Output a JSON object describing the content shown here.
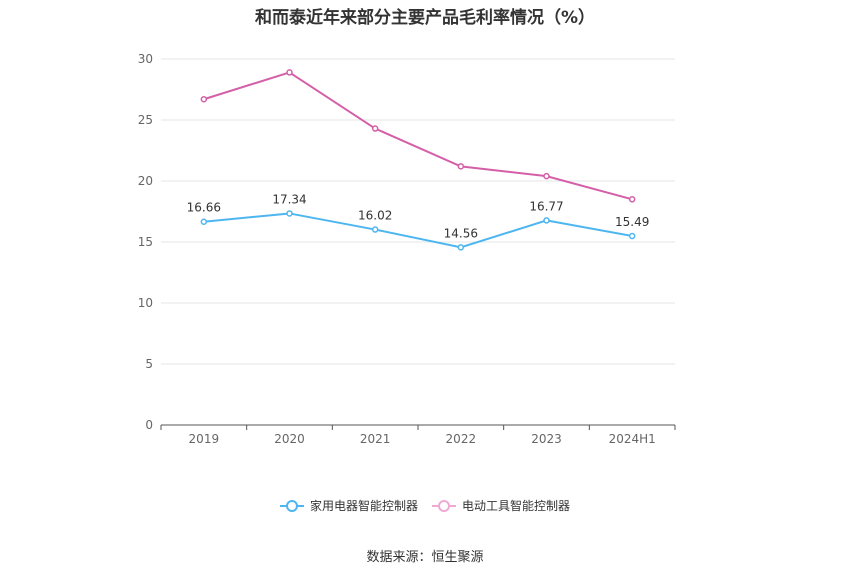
{
  "chart_data": {
    "type": "line",
    "title": "和而泰近年来部分主要产品毛利率情况（%）",
    "categories": [
      "2019",
      "2020",
      "2021",
      "2022",
      "2023",
      "2024H1"
    ],
    "ylim": [
      0,
      30
    ],
    "yticks": [
      0,
      5,
      10,
      15,
      20,
      25,
      30
    ],
    "grid": true,
    "legend_position": "bottom",
    "series": [
      {
        "name": "家用电器智能控制器",
        "color": "#4DB6F0",
        "values": [
          16.66,
          17.34,
          16.02,
          14.56,
          16.77,
          15.49
        ],
        "labels": [
          "16.66",
          "17.34",
          "16.02",
          "14.56",
          "16.77",
          "15.49"
        ]
      },
      {
        "name": "电动工具智能控制器",
        "color": "#D45FA8",
        "values": [
          26.7,
          28.9,
          24.3,
          21.2,
          20.4,
          18.5
        ]
      }
    ]
  },
  "legend_colors": {
    "series1_marker": "#4DB6F0",
    "series2_marker": "#F0A8D4"
  },
  "footer": {
    "source": "数据来源：恒生聚源"
  }
}
